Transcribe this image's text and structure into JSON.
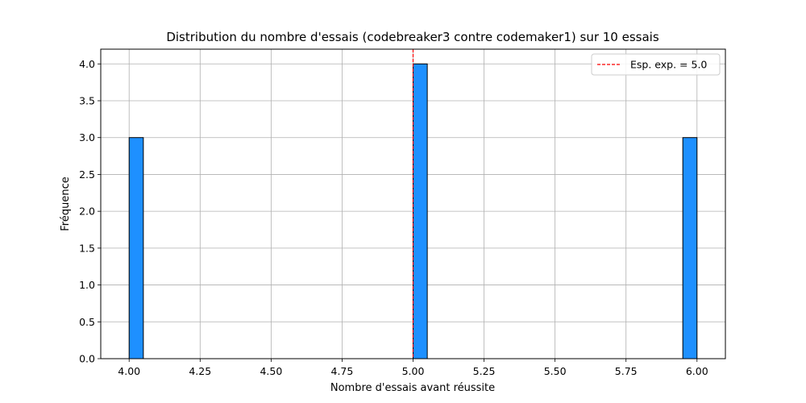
{
  "chart_data": {
    "type": "bar",
    "title": "Distribution du nombre d'essais (codebreaker3 contre codemaker1) sur 10 essais",
    "xlabel": "Nombre d'essais avant réussite",
    "ylabel": "Fréquence",
    "xlim": [
      3.9,
      6.1
    ],
    "ylim": [
      0,
      4.2
    ],
    "x_ticks": [
      "4.00",
      "4.25",
      "4.50",
      "4.75",
      "5.00",
      "5.25",
      "5.50",
      "5.75",
      "6.00"
    ],
    "y_ticks": [
      "0.0",
      "0.5",
      "1.0",
      "1.5",
      "2.0",
      "2.5",
      "3.0",
      "3.5",
      "4.0"
    ],
    "bin_width": 0.05,
    "bars": [
      {
        "x": 4.0,
        "value": 3
      },
      {
        "x": 5.0,
        "value": 4
      },
      {
        "x": 5.95,
        "value": 3
      }
    ],
    "expected_line": {
      "x": 5.0,
      "label": "Esp. exp. = 5.0",
      "color": "#ff0000"
    },
    "bar_color": "#1e90ff",
    "bar_edge_color": "#000000",
    "grid": true,
    "legend_position": "upper right"
  }
}
